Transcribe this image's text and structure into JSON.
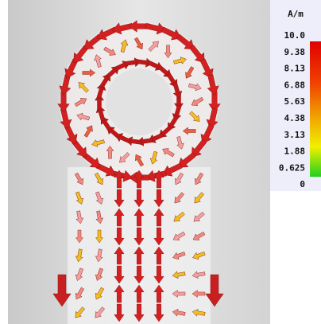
{
  "legend": {
    "unit": "A/m",
    "labels": [
      "10.0",
      "9.38",
      "8.13",
      "6.88",
      "5.63",
      "4.38",
      "3.13",
      "1.88",
      "0.625",
      "0"
    ]
  }
}
